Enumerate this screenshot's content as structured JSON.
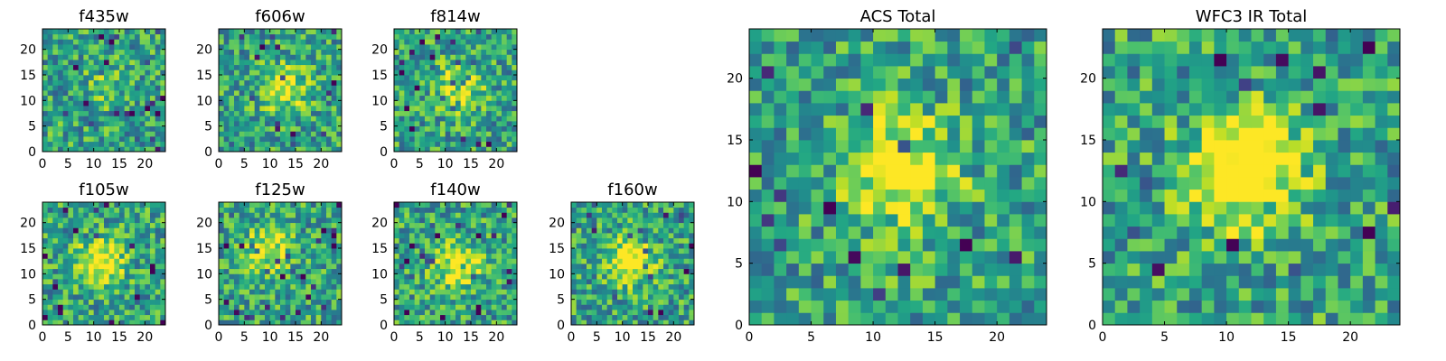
{
  "chart_data": [
    {
      "type": "heatmap",
      "title": "f435w",
      "xticks": [
        0,
        5,
        10,
        15,
        20
      ],
      "yticks": [
        0,
        5,
        10,
        15,
        20
      ],
      "xlim": [
        0,
        24
      ],
      "ylim": [
        0,
        24
      ],
      "colormap": "viridis",
      "grid_size": [
        24,
        24
      ],
      "peak": {
        "x": 12,
        "y": 12,
        "strength": 0.15
      },
      "noise_seed": 11
    },
    {
      "type": "heatmap",
      "title": "f606w",
      "xticks": [
        0,
        5,
        10,
        15,
        20
      ],
      "yticks": [
        0,
        5,
        10,
        15,
        20
      ],
      "xlim": [
        0,
        24
      ],
      "ylim": [
        0,
        24
      ],
      "colormap": "viridis",
      "grid_size": [
        24,
        24
      ],
      "peak": {
        "x": 12,
        "y": 12,
        "strength": 0.45
      },
      "noise_seed": 23
    },
    {
      "type": "heatmap",
      "title": "f814w",
      "xticks": [
        0,
        5,
        10,
        15,
        20
      ],
      "yticks": [
        0,
        5,
        10,
        15,
        20
      ],
      "xlim": [
        0,
        24
      ],
      "ylim": [
        0,
        24
      ],
      "colormap": "viridis",
      "grid_size": [
        24,
        24
      ],
      "peak": {
        "x": 12,
        "y": 12,
        "strength": 0.4
      },
      "noise_seed": 37
    },
    {
      "type": "heatmap",
      "title": "f105w",
      "xticks": [
        0,
        5,
        10,
        15,
        20
      ],
      "yticks": [
        0,
        5,
        10,
        15,
        20
      ],
      "xlim": [
        0,
        24
      ],
      "ylim": [
        0,
        24
      ],
      "colormap": "viridis",
      "grid_size": [
        24,
        24
      ],
      "peak": {
        "x": 11,
        "y": 12,
        "strength": 0.5
      },
      "noise_seed": 41
    },
    {
      "type": "heatmap",
      "title": "f125w",
      "xticks": [
        0,
        5,
        10,
        15,
        20
      ],
      "yticks": [
        0,
        5,
        10,
        15,
        20
      ],
      "xlim": [
        0,
        24
      ],
      "ylim": [
        0,
        24
      ],
      "colormap": "viridis",
      "grid_size": [
        24,
        24
      ],
      "peak": {
        "x": 9,
        "y": 14,
        "strength": 0.45
      },
      "noise_seed": 53
    },
    {
      "type": "heatmap",
      "title": "f140w",
      "xticks": [
        0,
        5,
        10,
        15,
        20
      ],
      "yticks": [
        0,
        5,
        10,
        15,
        20
      ],
      "xlim": [
        0,
        24
      ],
      "ylim": [
        0,
        24
      ],
      "colormap": "viridis",
      "grid_size": [
        24,
        24
      ],
      "peak": {
        "x": 12,
        "y": 11,
        "strength": 0.5
      },
      "noise_seed": 67
    },
    {
      "type": "heatmap",
      "title": "f160w",
      "xticks": [
        0,
        5,
        10,
        15,
        20
      ],
      "yticks": [
        0,
        5,
        10,
        15,
        20
      ],
      "xlim": [
        0,
        24
      ],
      "ylim": [
        0,
        24
      ],
      "colormap": "viridis",
      "grid_size": [
        24,
        24
      ],
      "peak": {
        "x": 11,
        "y": 12,
        "strength": 0.55
      },
      "noise_seed": 79
    },
    {
      "type": "heatmap",
      "title": "ACS Total",
      "xticks": [
        0,
        5,
        10,
        15,
        20
      ],
      "yticks": [
        0,
        5,
        10,
        15,
        20
      ],
      "xlim": [
        0,
        24
      ],
      "ylim": [
        0,
        24
      ],
      "colormap": "viridis",
      "grid_size": [
        24,
        24
      ],
      "peak": {
        "x": 12,
        "y": 12,
        "strength": 0.5
      },
      "noise_seed": 97
    },
    {
      "type": "heatmap",
      "title": "WFC3 IR Total",
      "xticks": [
        0,
        5,
        10,
        15,
        20
      ],
      "yticks": [
        0,
        5,
        10,
        15,
        20
      ],
      "xlim": [
        0,
        24
      ],
      "ylim": [
        0,
        24
      ],
      "colormap": "viridis",
      "grid_size": [
        24,
        24
      ],
      "peak": {
        "x": 11,
        "y": 12,
        "strength": 0.7
      },
      "noise_seed": 113
    }
  ]
}
